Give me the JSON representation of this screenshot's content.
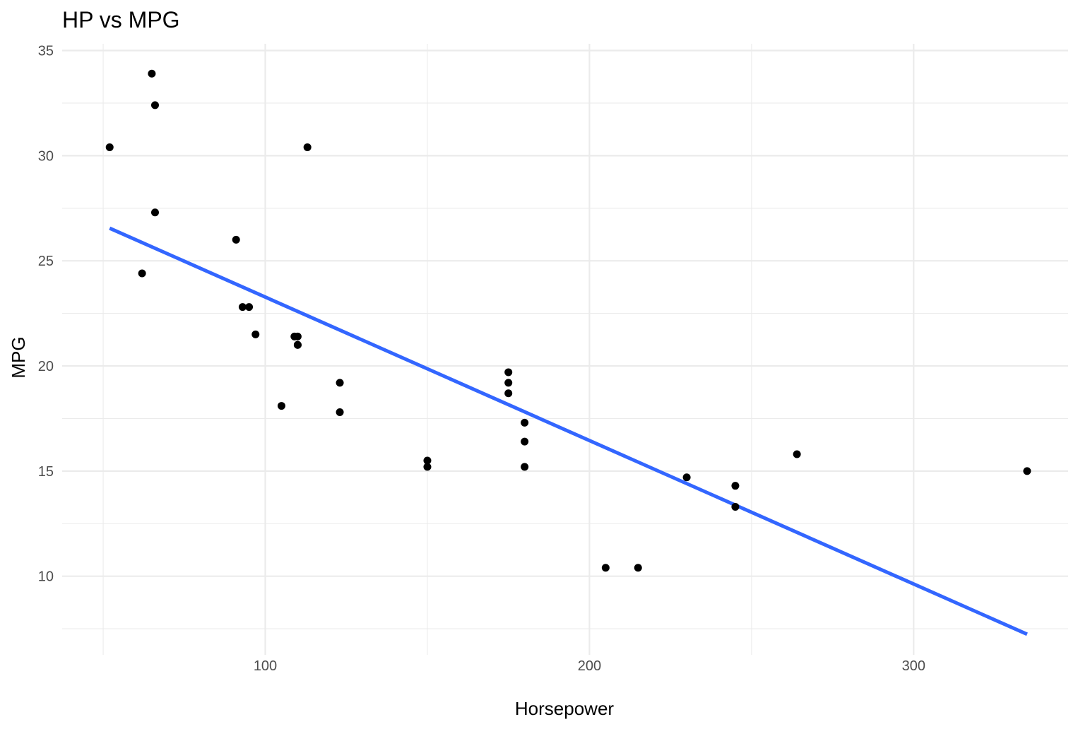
{
  "chart_data": {
    "type": "scatter",
    "title": "HP vs MPG",
    "xlabel": "Horsepower",
    "ylabel": "MPG",
    "xlim": [
      37.35,
      347.65
    ],
    "ylim": [
      6.26,
      35.32
    ],
    "x_ticks": [
      100,
      200,
      300
    ],
    "x_tick_labels": [
      "100",
      "200",
      "300"
    ],
    "x_minor_ticks": [
      50,
      150,
      250
    ],
    "y_ticks": [
      10,
      15,
      20,
      25,
      30,
      35
    ],
    "y_tick_labels": [
      "10",
      "15",
      "20",
      "25",
      "30",
      "35"
    ],
    "y_minor_ticks": [
      7.5,
      12.5,
      17.5,
      22.5,
      27.5,
      32.5
    ],
    "grid": true,
    "legend": "none",
    "points": [
      {
        "x": 110,
        "y": 21.0
      },
      {
        "x": 110,
        "y": 21.0
      },
      {
        "x": 93,
        "y": 22.8
      },
      {
        "x": 110,
        "y": 21.4
      },
      {
        "x": 175,
        "y": 18.7
      },
      {
        "x": 105,
        "y": 18.1
      },
      {
        "x": 245,
        "y": 14.3
      },
      {
        "x": 62,
        "y": 24.4
      },
      {
        "x": 95,
        "y": 22.8
      },
      {
        "x": 123,
        "y": 19.2
      },
      {
        "x": 123,
        "y": 17.8
      },
      {
        "x": 180,
        "y": 16.4
      },
      {
        "x": 180,
        "y": 17.3
      },
      {
        "x": 180,
        "y": 15.2
      },
      {
        "x": 205,
        "y": 10.4
      },
      {
        "x": 215,
        "y": 10.4
      },
      {
        "x": 230,
        "y": 14.7
      },
      {
        "x": 66,
        "y": 32.4
      },
      {
        "x": 52,
        "y": 30.4
      },
      {
        "x": 65,
        "y": 33.9
      },
      {
        "x": 97,
        "y": 21.5
      },
      {
        "x": 150,
        "y": 15.5
      },
      {
        "x": 150,
        "y": 15.2
      },
      {
        "x": 245,
        "y": 13.3
      },
      {
        "x": 175,
        "y": 19.2
      },
      {
        "x": 66,
        "y": 27.3
      },
      {
        "x": 91,
        "y": 26.0
      },
      {
        "x": 113,
        "y": 30.4
      },
      {
        "x": 264,
        "y": 15.8
      },
      {
        "x": 175,
        "y": 19.7
      },
      {
        "x": 335,
        "y": 15.0
      },
      {
        "x": 109,
        "y": 21.4
      }
    ],
    "trend_line": {
      "type": "linear",
      "color": "#3366ff",
      "x": [
        52,
        335
      ],
      "y": [
        26.55,
        7.24
      ]
    }
  }
}
